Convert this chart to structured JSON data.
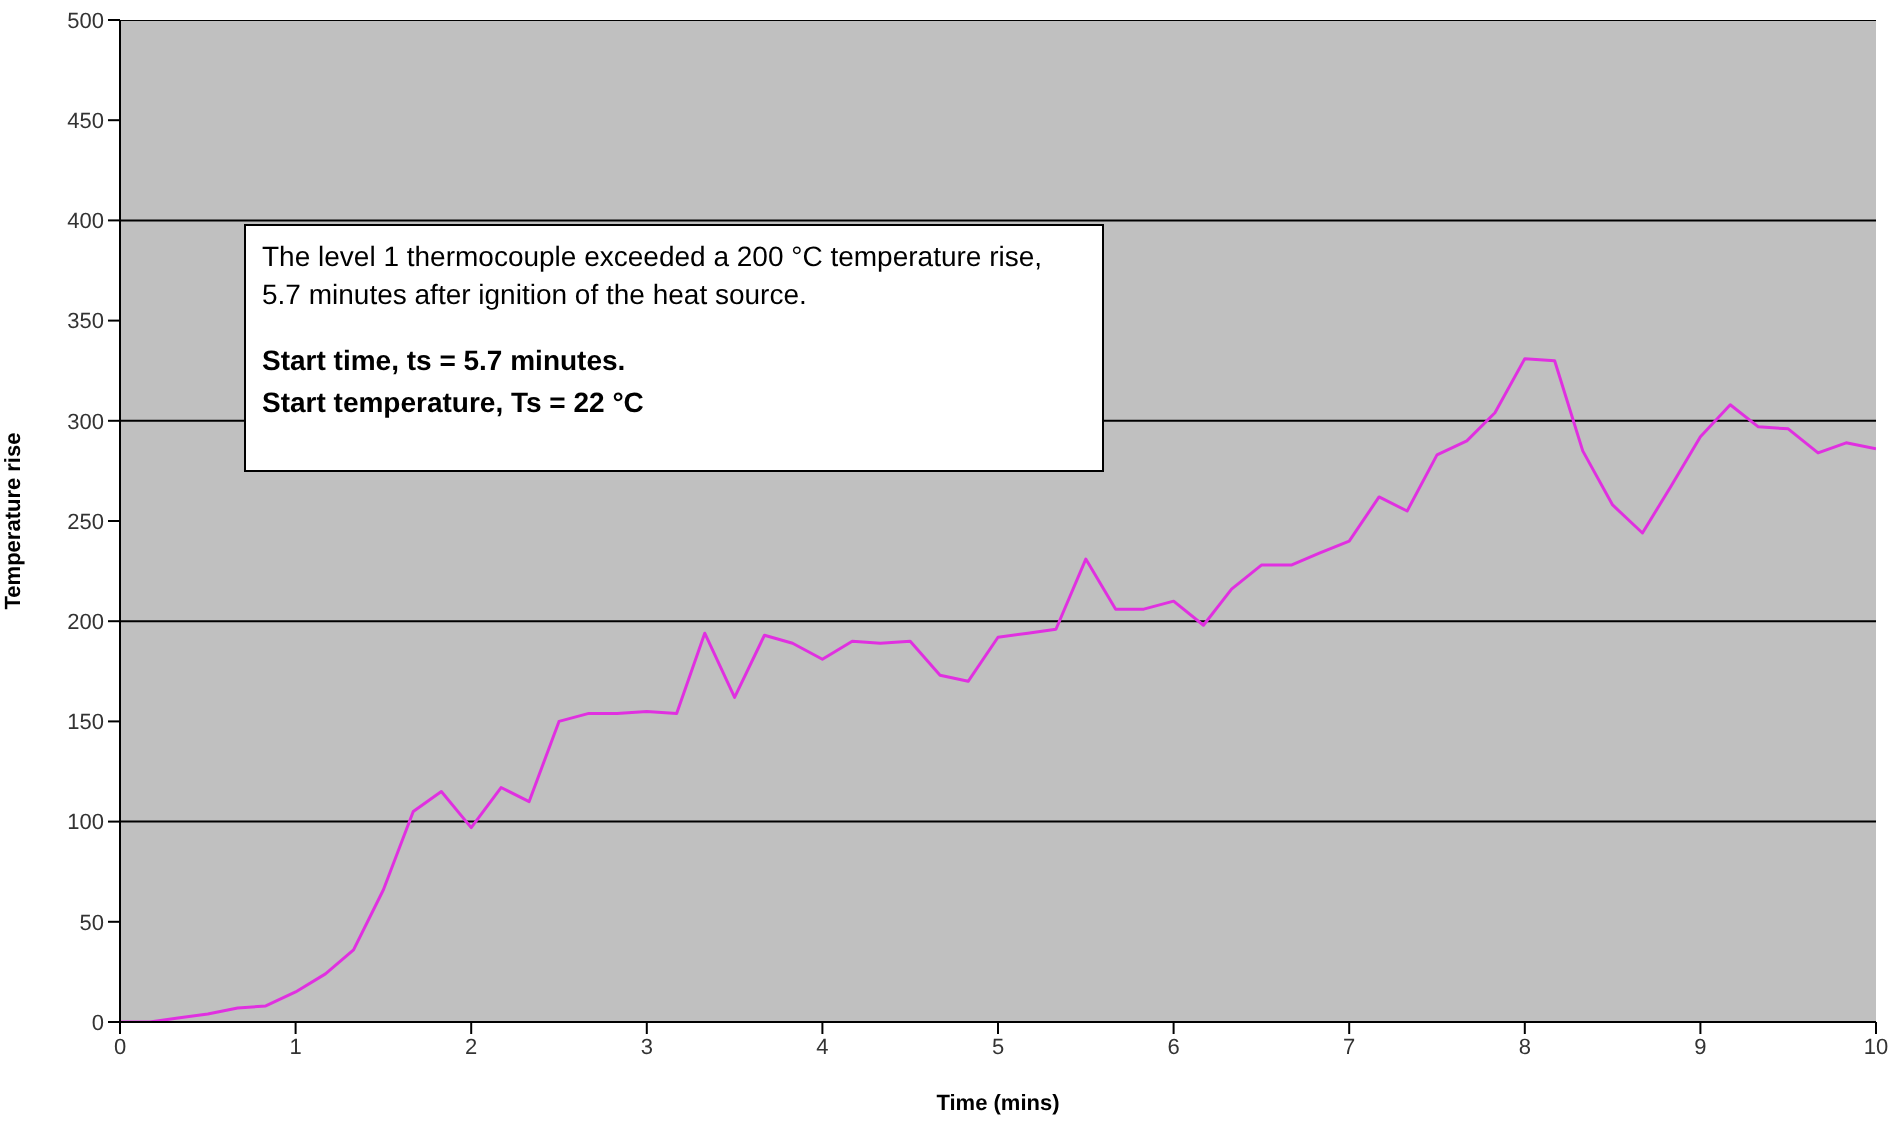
{
  "chart_data": {
    "type": "line",
    "xlabel": "Time (mins)",
    "ylabel": "Temperature rise",
    "annotations": [
      "The level 1 thermocouple exceeded a 200 °C temperature rise, 5.7 minutes after ignition of the heat source.",
      "Start time, ts = 5.7 minutes.",
      "Start temperature, Ts = 22 °C"
    ],
    "x": [
      0,
      0.17,
      0.33,
      0.5,
      0.67,
      0.83,
      1,
      1.17,
      1.33,
      1.5,
      1.67,
      1.83,
      2,
      2.17,
      2.33,
      2.5,
      2.67,
      2.83,
      3,
      3.17,
      3.33,
      3.5,
      3.67,
      3.83,
      4,
      4.17,
      4.33,
      4.5,
      4.67,
      4.83,
      5,
      5.17,
      5.33,
      5.5,
      5.67,
      5.83,
      6,
      6.17,
      6.33,
      6.5,
      6.67,
      6.83,
      7,
      7.17,
      7.33,
      7.5,
      7.67,
      7.83,
      8,
      8.17,
      8.33,
      8.5,
      8.67,
      8.83,
      9,
      9.17,
      9.33,
      9.5,
      9.67,
      9.83,
      10
    ],
    "series": [
      {
        "color": "#e030e0",
        "values": [
          0,
          0,
          2,
          4,
          7,
          8,
          15,
          24,
          36,
          66,
          105,
          115,
          97,
          117,
          110,
          150,
          154,
          154,
          155,
          154,
          194,
          162,
          193,
          189,
          181,
          190,
          189,
          190,
          173,
          170,
          192,
          194,
          196,
          231,
          206,
          206,
          210,
          198,
          216,
          228,
          228,
          234,
          240,
          262,
          255,
          283,
          290,
          304,
          331,
          330,
          285,
          258,
          244,
          267,
          292,
          308,
          297,
          296,
          284,
          289,
          286
        ]
      }
    ],
    "xlim": [
      0,
      10
    ],
    "xticks": [
      0,
      1,
      2,
      3,
      4,
      5,
      6,
      7,
      8,
      9,
      10
    ],
    "ylim": [
      0,
      500
    ],
    "yticks": [
      0,
      50,
      100,
      150,
      200,
      250,
      300,
      350,
      400,
      450,
      500
    ],
    "grid": "y",
    "marker": "none",
    "line_style": "solid"
  }
}
